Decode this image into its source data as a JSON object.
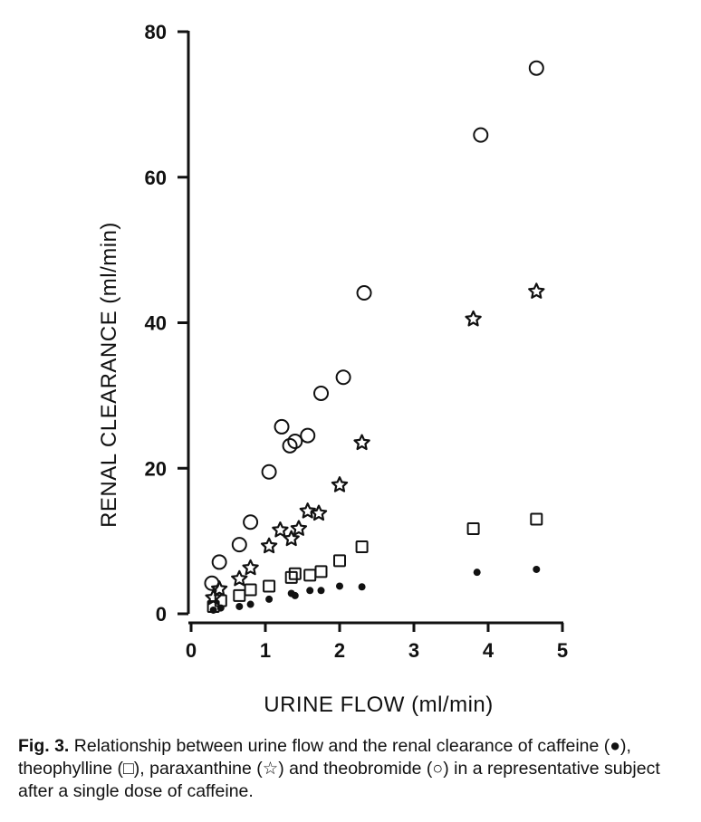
{
  "caption": {
    "label": "Fig. 3.",
    "text": " Relationship between urine flow and the renal clearance of caffeine (●), theophylline (□), paraxanthine (☆) and theobromide (○) in a representative subject after a single dose of caffeine."
  },
  "chart_data": {
    "type": "scatter",
    "xlabel": "URINE FLOW (ml/min)",
    "ylabel": "RENAL CLEARANCE (ml/min)",
    "xlim": [
      0,
      5
    ],
    "ylim": [
      0,
      80
    ],
    "x_ticks": [
      "0",
      "1",
      "2",
      "3",
      "4",
      "5"
    ],
    "y_ticks": [
      "0",
      "20",
      "40",
      "60",
      "80"
    ],
    "grid": false,
    "series": [
      {
        "name": "caffeine",
        "marker": "filled-circle",
        "points": [
          [
            0.3,
            0.5
          ],
          [
            0.4,
            0.8
          ],
          [
            0.65,
            1.0
          ],
          [
            0.8,
            1.3
          ],
          [
            1.05,
            2.0
          ],
          [
            1.35,
            2.8
          ],
          [
            1.4,
            2.5
          ],
          [
            1.6,
            3.2
          ],
          [
            1.75,
            3.2
          ],
          [
            2.0,
            3.8
          ],
          [
            2.3,
            3.7
          ],
          [
            3.85,
            5.7
          ],
          [
            4.65,
            6.1
          ]
        ]
      },
      {
        "name": "theophylline",
        "marker": "open-square",
        "points": [
          [
            0.3,
            1.0
          ],
          [
            0.4,
            1.8
          ],
          [
            0.65,
            2.5
          ],
          [
            0.8,
            3.3
          ],
          [
            1.05,
            3.8
          ],
          [
            1.35,
            5.0
          ],
          [
            1.4,
            5.5
          ],
          [
            1.6,
            5.3
          ],
          [
            1.75,
            5.8
          ],
          [
            2.0,
            7.3
          ],
          [
            2.3,
            9.2
          ],
          [
            3.8,
            11.7
          ],
          [
            4.65,
            13.0
          ]
        ]
      },
      {
        "name": "paraxanthine",
        "marker": "open-star",
        "points": [
          [
            0.3,
            2.2
          ],
          [
            0.38,
            3.4
          ],
          [
            0.65,
            4.8
          ],
          [
            0.8,
            6.3
          ],
          [
            1.05,
            9.3
          ],
          [
            1.2,
            11.5
          ],
          [
            1.35,
            10.3
          ],
          [
            1.45,
            11.7
          ],
          [
            1.57,
            14.1
          ],
          [
            1.72,
            13.8
          ],
          [
            2.0,
            17.7
          ],
          [
            2.3,
            23.5
          ],
          [
            3.8,
            40.5
          ],
          [
            4.65,
            44.3
          ]
        ]
      },
      {
        "name": "theobromide",
        "marker": "open-circle",
        "points": [
          [
            0.28,
            4.2
          ],
          [
            0.38,
            7.1
          ],
          [
            0.65,
            9.5
          ],
          [
            0.8,
            12.6
          ],
          [
            1.05,
            19.5
          ],
          [
            1.22,
            25.7
          ],
          [
            1.33,
            23.1
          ],
          [
            1.4,
            23.7
          ],
          [
            1.57,
            24.5
          ],
          [
            1.75,
            30.3
          ],
          [
            2.05,
            32.5
          ],
          [
            2.33,
            44.1
          ],
          [
            3.9,
            65.8
          ],
          [
            4.65,
            75.0
          ]
        ]
      }
    ]
  }
}
